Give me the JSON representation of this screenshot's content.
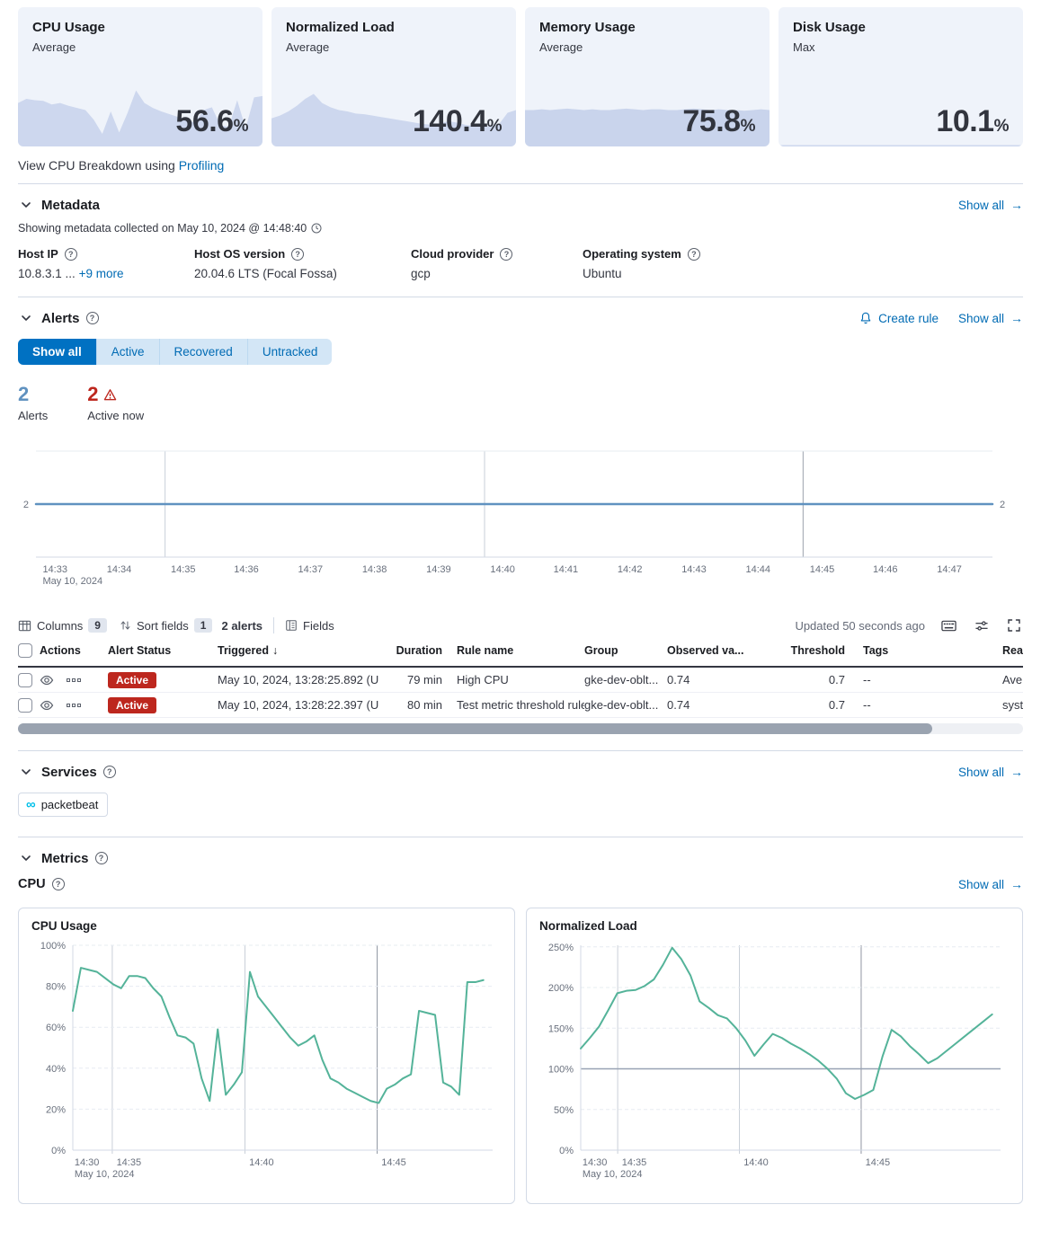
{
  "colors": {
    "primary": "#0071c2",
    "link": "#006bb4",
    "danger": "#bd271e",
    "metric_line": "#54b399",
    "timeline_line": "#6092c0",
    "spark_fill": "#cdd7ee",
    "kpi_card_bg": "#eff3fa",
    "count_total": "#6092c0"
  },
  "icons": {
    "question": "?",
    "arrow_right": "→",
    "sort_desc": "↓",
    "service_infinity": "∞"
  },
  "kpi_cards": [
    {
      "title": "CPU Usage",
      "subtitle": "Average",
      "value": "56.6",
      "unit": "%"
    },
    {
      "title": "Normalized Load",
      "subtitle": "Average",
      "value": "140.4",
      "unit": "%"
    },
    {
      "title": "Memory Usage",
      "subtitle": "Average",
      "value": "75.8",
      "unit": "%"
    },
    {
      "title": "Disk Usage",
      "subtitle": "Max",
      "value": "10.1",
      "unit": "%"
    }
  ],
  "profiling_note": {
    "text": "View CPU Breakdown using ",
    "link_label": "Profiling"
  },
  "metadata": {
    "title": "Metadata",
    "show_all": "Show all",
    "collected_text": "Showing metadata collected on May 10, 2024 @ 14:48:40",
    "fields": [
      {
        "label": "Host IP",
        "value": "10.8.3.1 ...",
        "link": "+9 more"
      },
      {
        "label": "Host OS version",
        "value": "20.04.6 LTS (Focal Fossa)"
      },
      {
        "label": "Cloud provider",
        "value": "gcp"
      },
      {
        "label": "Operating system",
        "value": "Ubuntu"
      }
    ]
  },
  "alerts": {
    "title": "Alerts",
    "create_rule": "Create rule",
    "show_all": "Show all",
    "tabs": [
      {
        "label": "Show all"
      },
      {
        "label": "Active"
      },
      {
        "label": "Recovered"
      },
      {
        "label": "Untracked"
      }
    ],
    "counts": [
      {
        "value": "2",
        "label": "Alerts"
      },
      {
        "value": "2",
        "label": "Active now"
      }
    ],
    "toolbar": {
      "columns_label": "Columns",
      "columns_count": "9",
      "sort_label": "Sort fields",
      "sort_count": "1",
      "alerts_count": "2 alerts",
      "fields_label": "Fields",
      "updated": "Updated 50 seconds ago"
    },
    "table": {
      "headers": [
        "Actions",
        "Alert Status",
        "Triggered",
        "Duration",
        "Rule name",
        "Group",
        "Observed va...",
        "Threshold",
        "Tags",
        "Reason"
      ],
      "rows": [
        {
          "status": "Active",
          "triggered": "May 10, 2024, 13:28:25.892 (U",
          "duration": "79 min",
          "rule": "High CPU",
          "group": "gke-dev-oblt...",
          "observed": "0.74",
          "threshold": "0.7",
          "tags": "--",
          "reason": "Ave"
        },
        {
          "status": "Active",
          "triggered": "May 10, 2024, 13:28:22.397 (U",
          "duration": "80 min",
          "rule": "Test metric threshold rule",
          "group": "gke-dev-oblt...",
          "observed": "0.74",
          "threshold": "0.7",
          "tags": "--",
          "reason": "syst"
        }
      ]
    }
  },
  "services": {
    "title": "Services",
    "show_all": "Show all",
    "items": [
      {
        "name": "packetbeat"
      }
    ]
  },
  "metrics": {
    "title": "Metrics",
    "subsection": "CPU",
    "show_all": "Show all"
  },
  "chart_data": [
    {
      "type": "area",
      "name": "cpu-usage-sparkline",
      "ylim": [
        0,
        100
      ],
      "fill": "#cdd7ee",
      "values": [
        62,
        68,
        66,
        65,
        60,
        62,
        58,
        55,
        52,
        38,
        18,
        50,
        20,
        48,
        80,
        62,
        55,
        50,
        46,
        42,
        38,
        34,
        52,
        56,
        30,
        28,
        66,
        26,
        70,
        72
      ]
    },
    {
      "type": "area",
      "name": "normalized-load-sparkline",
      "ylim": [
        0,
        100
      ],
      "fill": "#cdd7ee",
      "values": [
        40,
        44,
        50,
        58,
        68,
        75,
        62,
        56,
        52,
        50,
        47,
        46,
        44,
        42,
        40,
        38,
        36,
        34,
        32,
        31,
        33,
        36,
        34,
        31,
        29,
        28,
        29,
        32,
        48,
        52
      ]
    },
    {
      "type": "area",
      "name": "memory-usage-sparkline",
      "ylim": [
        0,
        100
      ],
      "fill": "#c9d4ec",
      "values": [
        52,
        52,
        53,
        52,
        53,
        54,
        53,
        52,
        53,
        52,
        52,
        53,
        54,
        53,
        52,
        53,
        53,
        52,
        52,
        53,
        54,
        53,
        52,
        53,
        52,
        52,
        51,
        52,
        53,
        52
      ]
    },
    {
      "type": "area",
      "name": "disk-usage-sparkline",
      "ylim": [
        0,
        100
      ],
      "fill": "#cdd7ee",
      "values": [
        2,
        2,
        2,
        2,
        2,
        2,
        2,
        2,
        2,
        2,
        2,
        2,
        2,
        2,
        2,
        2,
        2,
        2,
        2,
        2,
        2,
        2,
        2,
        2,
        2,
        2,
        2,
        2,
        2,
        2
      ]
    },
    {
      "type": "line",
      "name": "alerts-count-timeline",
      "values": [
        2,
        2
      ],
      "ylim": [
        0,
        4
      ],
      "color": "#6092c0",
      "lw": 2.5,
      "pad": {
        "l": 20,
        "r": 34,
        "t": 2,
        "b": 36
      },
      "topline": true,
      "axis_bottom": true,
      "yticks": [
        {
          "v": 2,
          "label": "2"
        }
      ],
      "yticks_both": true,
      "vlines": [
        {
          "f": 0.135,
          "color": "#c9cfd8"
        },
        {
          "f": 0.469,
          "color": "#c9cfd8"
        },
        {
          "f": 0.802,
          "color": "#9aa1ac"
        }
      ],
      "xticks": [
        {
          "f": 0.007,
          "label": "14:33",
          "sub": "May 10, 2024"
        },
        {
          "f": 0.074,
          "label": "14:34"
        },
        {
          "f": 0.141,
          "label": "14:35"
        },
        {
          "f": 0.207,
          "label": "14:36"
        },
        {
          "f": 0.274,
          "label": "14:37"
        },
        {
          "f": 0.341,
          "label": "14:38"
        },
        {
          "f": 0.408,
          "label": "14:39"
        },
        {
          "f": 0.475,
          "label": "14:40"
        },
        {
          "f": 0.541,
          "label": "14:41"
        },
        {
          "f": 0.608,
          "label": "14:42"
        },
        {
          "f": 0.675,
          "label": "14:43"
        },
        {
          "f": 0.742,
          "label": "14:44"
        },
        {
          "f": 0.809,
          "label": "14:45"
        },
        {
          "f": 0.875,
          "label": "14:46"
        },
        {
          "f": 0.942,
          "label": "14:47"
        }
      ]
    },
    {
      "type": "line",
      "name": "cpu-usage-chart",
      "title": "CPU Usage",
      "values": [
        68,
        89,
        88,
        87,
        84,
        81,
        79,
        85,
        85,
        84,
        79,
        75,
        65,
        56,
        55,
        52,
        35,
        24,
        59,
        27,
        32,
        38,
        87,
        75,
        70,
        65,
        60,
        55,
        51,
        53,
        56,
        44,
        35,
        33,
        30,
        28,
        26,
        24,
        23,
        30,
        32,
        35,
        37,
        68,
        67,
        66,
        33,
        31,
        27,
        82,
        82,
        83
      ],
      "ylim": [
        0,
        100
      ],
      "xspan": [
        0,
        0.978
      ],
      "color": "#54b399",
      "lw": 2,
      "pad": {
        "l": 46,
        "r": 10,
        "t": 8,
        "b": 40
      },
      "axis_left": true,
      "axis_bottom": true,
      "tick_ext": 4,
      "yticks": [
        {
          "v": 0,
          "label": "0%"
        },
        {
          "v": 20,
          "label": "20%",
          "grid": true
        },
        {
          "v": 40,
          "label": "40%",
          "grid": true
        },
        {
          "v": 60,
          "label": "60%",
          "grid": true
        },
        {
          "v": 80,
          "label": "80%",
          "grid": true
        },
        {
          "v": 100,
          "label": "100%",
          "grid": true
        }
      ],
      "vlines": [
        {
          "f": 0.094,
          "color": "#c9cfd8"
        },
        {
          "f": 0.41,
          "color": "#c9cfd8"
        },
        {
          "f": 0.725,
          "color": "#8e95a0"
        }
      ],
      "xticks": [
        {
          "f": 0.004,
          "label": "14:30",
          "sub": "May 10, 2024"
        },
        {
          "f": 0.104,
          "label": "14:35"
        },
        {
          "f": 0.42,
          "label": "14:40"
        },
        {
          "f": 0.735,
          "label": "14:45"
        }
      ]
    },
    {
      "type": "line",
      "name": "normalized-load-chart",
      "title": "Normalized Load",
      "values": [
        125,
        138,
        152,
        172,
        193,
        196,
        197,
        202,
        210,
        228,
        249,
        235,
        215,
        183,
        175,
        166,
        162,
        150,
        135,
        116,
        130,
        143,
        138,
        131,
        125,
        118,
        110,
        100,
        88,
        70,
        63,
        68,
        74,
        115,
        148,
        140,
        128,
        118,
        107,
        113,
        122,
        131,
        140,
        149,
        158,
        167
      ],
      "ylim": [
        0,
        252
      ],
      "xspan": [
        0,
        0.98
      ],
      "color": "#54b399",
      "lw": 2,
      "pad": {
        "l": 46,
        "r": 10,
        "t": 8,
        "b": 40
      },
      "axis_left": true,
      "axis_bottom": true,
      "tick_ext": 4,
      "threshold": {
        "v": 100,
        "color": "#98a2b3"
      },
      "yticks": [
        {
          "v": 0,
          "label": "0%"
        },
        {
          "v": 50,
          "label": "50%",
          "grid": true
        },
        {
          "v": 100,
          "label": "100%",
          "grid": true
        },
        {
          "v": 150,
          "label": "150%",
          "grid": true
        },
        {
          "v": 200,
          "label": "200%",
          "grid": true
        },
        {
          "v": 250,
          "label": "250%",
          "grid": true
        }
      ],
      "vlines": [
        {
          "f": 0.088,
          "color": "#c9cfd8"
        },
        {
          "f": 0.378,
          "color": "#c9cfd8"
        },
        {
          "f": 0.668,
          "color": "#8e95a0"
        }
      ],
      "xticks": [
        {
          "f": 0.004,
          "label": "14:30",
          "sub": "May 10, 2024"
        },
        {
          "f": 0.098,
          "label": "14:35"
        },
        {
          "f": 0.388,
          "label": "14:40"
        },
        {
          "f": 0.678,
          "label": "14:45"
        }
      ]
    }
  ]
}
